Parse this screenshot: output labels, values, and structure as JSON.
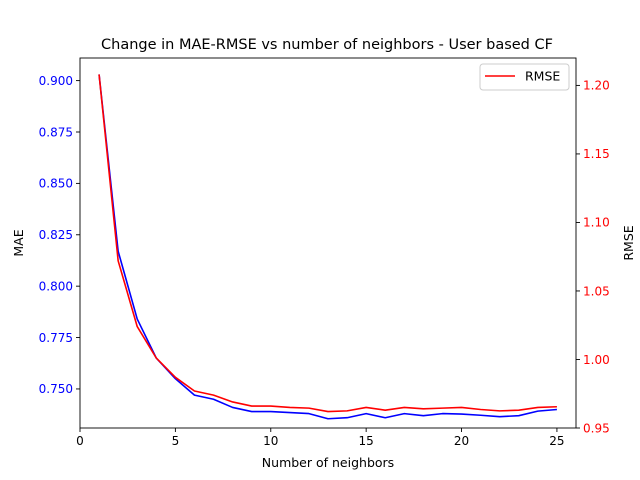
{
  "chart_data": {
    "type": "line",
    "title": "Change in MAE-RMSE vs number of neighbors - User based CF",
    "xlabel": "Number of neighbors",
    "ylabel_left": "MAE",
    "ylabel_right": "RMSE",
    "xlim": [
      0,
      26
    ],
    "ylim_left": [
      0.731,
      0.911
    ],
    "ylim_right": [
      0.95,
      1.22
    ],
    "x_ticks": [
      0,
      5,
      10,
      15,
      20,
      25
    ],
    "x_tick_labels": [
      "0",
      "5",
      "10",
      "15",
      "20",
      "25"
    ],
    "y_left_ticks": [
      0.75,
      0.775,
      0.8,
      0.825,
      0.85,
      0.875,
      0.9
    ],
    "y_left_tick_labels": [
      "0.750",
      "0.775",
      "0.800",
      "0.825",
      "0.850",
      "0.875",
      "0.900"
    ],
    "y_right_ticks": [
      0.95,
      1.0,
      1.05,
      1.1,
      1.15,
      1.2
    ],
    "y_right_tick_labels": [
      "0.95",
      "1.00",
      "1.05",
      "1.10",
      "1.15",
      "1.20"
    ],
    "legend_placement": "top-right",
    "grid": false,
    "x": [
      1,
      2,
      3,
      4,
      5,
      6,
      7,
      8,
      9,
      10,
      11,
      12,
      13,
      14,
      15,
      16,
      17,
      18,
      19,
      20,
      21,
      22,
      23,
      24,
      25
    ],
    "series": [
      {
        "axis": "left",
        "color": "#0000ff",
        "values": [
          0.903,
          0.817,
          0.784,
          0.765,
          0.755,
          0.747,
          0.745,
          0.741,
          0.739,
          0.739,
          0.7385,
          0.738,
          0.7355,
          0.736,
          0.738,
          0.736,
          0.738,
          0.737,
          0.738,
          0.7378,
          0.7372,
          0.7365,
          0.737,
          0.7392,
          0.74
        ]
      },
      {
        "name": "RMSE",
        "axis": "right",
        "color": "#ff0000",
        "values": [
          1.208,
          1.072,
          1.024,
          1.001,
          0.987,
          0.977,
          0.974,
          0.969,
          0.966,
          0.966,
          0.965,
          0.9645,
          0.962,
          0.9625,
          0.965,
          0.963,
          0.965,
          0.964,
          0.9645,
          0.965,
          0.9635,
          0.9625,
          0.963,
          0.965,
          0.9655
        ]
      }
    ]
  }
}
